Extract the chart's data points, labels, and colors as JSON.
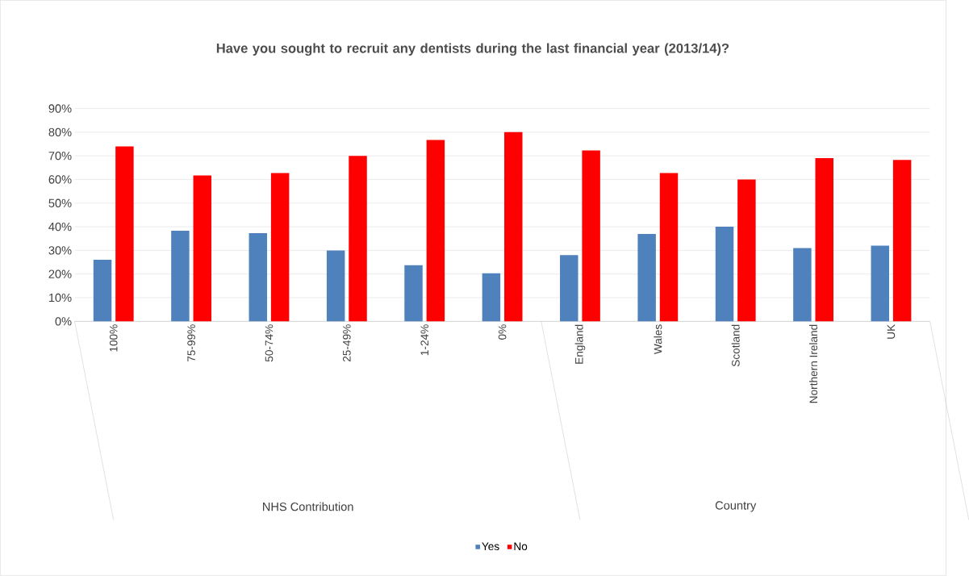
{
  "chart_data": {
    "type": "bar",
    "title": "Have you sought to recruit any dentists during the last financial year (2013/14)?",
    "categories": [
      "100%",
      "75-99%",
      "50-74%",
      "25-49%",
      "1-24%",
      "0%",
      "England",
      "Wales",
      "Scotland",
      "Northern Ireland",
      "UK"
    ],
    "series": [
      {
        "name": "Yes",
        "color": "#4f81bd",
        "values": [
          26,
          38.3,
          37.3,
          30,
          23.7,
          20.3,
          28,
          37,
          40,
          31,
          32
        ]
      },
      {
        "name": "No",
        "color": "#ff0000",
        "values": [
          74,
          61.7,
          62.7,
          70,
          76.7,
          80,
          72.3,
          62.7,
          60,
          69,
          68.3
        ]
      }
    ],
    "ylim": [
      0,
      90
    ],
    "yticks": [
      {
        "value": 0,
        "label": "0%"
      },
      {
        "value": 10,
        "label": "10%"
      },
      {
        "value": 20,
        "label": "20%"
      },
      {
        "value": 30,
        "label": "30%"
      },
      {
        "value": 40,
        "label": "40%"
      },
      {
        "value": 50,
        "label": "50%"
      },
      {
        "value": 60,
        "label": "60%"
      },
      {
        "value": 70,
        "label": "70%"
      },
      {
        "value": 80,
        "label": "80%"
      },
      {
        "value": 90,
        "label": "90%"
      }
    ],
    "grid": "y",
    "legend": "bottom",
    "annotations": [
      "NHS Contribution",
      "Country"
    ]
  }
}
